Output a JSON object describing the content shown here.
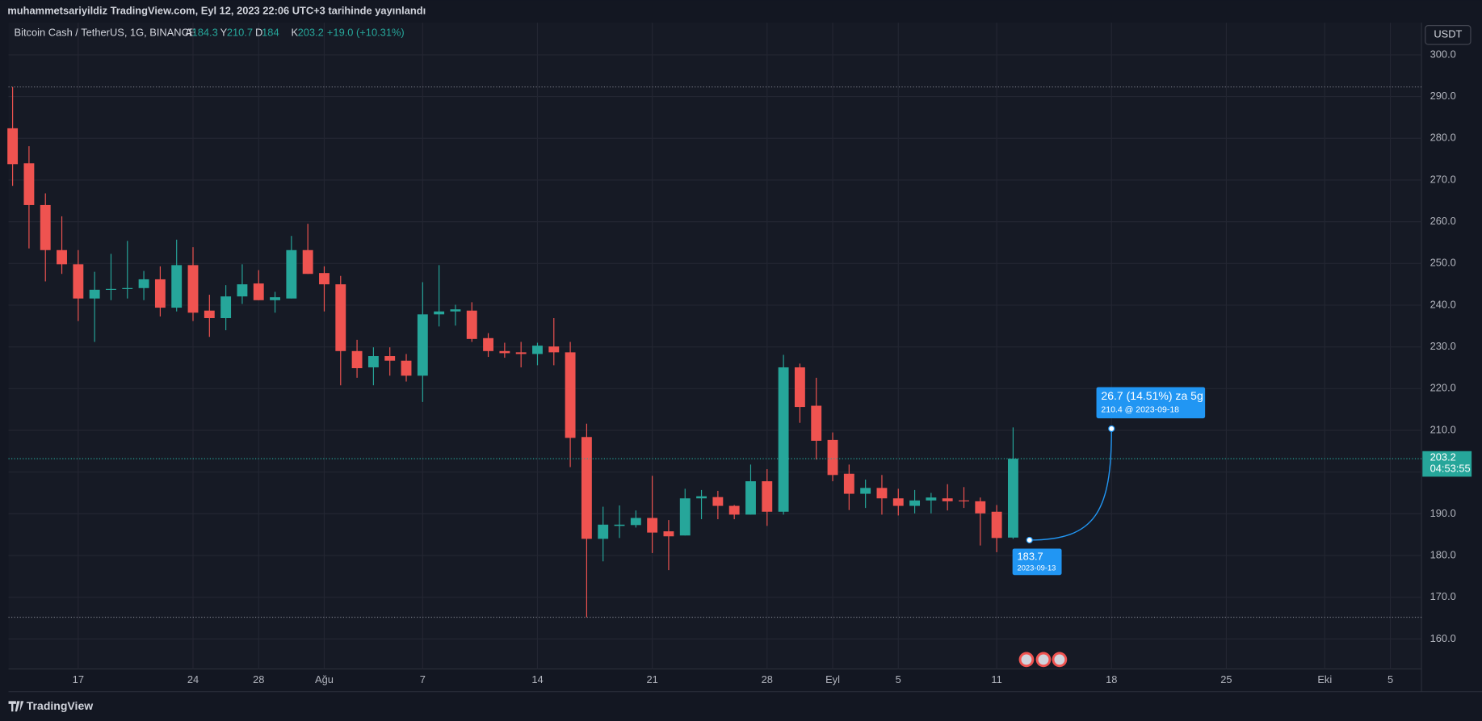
{
  "header": {
    "published": "muhammetsariyildiz TradingView.com, Eyl 12, 2023 22:06 UTC+3 tarihinde yayınlandı"
  },
  "footer": {
    "brand": "TradingView"
  },
  "chart_data": {
    "type": "candlestick",
    "symbol": "Bitcoin Cash / TetherUS, 1G, BINANCE",
    "ohlc_letters": [
      "A",
      "Y",
      "D",
      "K"
    ],
    "change_label": "+19.0 (+10.31%)",
    "currency": "USDT",
    "countdown": "04:53:55",
    "up_color": "#26a69a",
    "down_color": "#ef5350",
    "x": [
      0,
      1,
      2,
      3,
      4,
      5,
      6,
      7,
      8,
      9,
      10,
      11,
      12,
      13,
      14,
      15,
      16,
      17,
      18,
      19,
      20,
      21,
      22,
      23,
      24,
      25,
      26,
      27,
      28,
      29,
      30,
      31,
      32,
      33,
      34,
      35,
      36,
      37,
      38,
      39,
      40,
      41,
      42,
      43,
      44,
      45,
      46,
      47,
      48,
      49,
      50,
      51,
      52,
      53,
      54,
      55,
      56,
      57,
      58,
      59,
      60,
      61
    ],
    "open": [
      282.4,
      274.0,
      264.0,
      253.2,
      249.8,
      241.6,
      243.7,
      243.9,
      244.1,
      246.2,
      239.4,
      249.6,
      238.7,
      236.9,
      242.1,
      245.2,
      241.2,
      241.6,
      253.2,
      247.7,
      245.0,
      229.0,
      225.1,
      227.8,
      226.7,
      223.1,
      237.8,
      238.5,
      238.7,
      232.1,
      229.0,
      228.7,
      228.3,
      230.1,
      228.7,
      208.4,
      184.0,
      187.1,
      187.3,
      189.0,
      185.8,
      184.8,
      193.7,
      194.0,
      191.9,
      189.8,
      197.8,
      190.5,
      225.1,
      215.9,
      207.7,
      199.6,
      194.8,
      196.2,
      193.7,
      191.9,
      193.2,
      193.7,
      193.2,
      193.0,
      190.5,
      184.3
    ],
    "high": [
      292.3,
      278.1,
      266.8,
      261.3,
      253.2,
      248.0,
      252.3,
      255.4,
      248.2,
      249.3,
      255.7,
      253.9,
      242.5,
      244.8,
      249.8,
      248.4,
      243.2,
      256.6,
      259.5,
      249.3,
      247.0,
      231.7,
      229.9,
      229.9,
      228.3,
      245.5,
      249.6,
      240.1,
      240.7,
      233.3,
      231.0,
      231.2,
      231.0,
      236.9,
      231.2,
      211.6,
      191.7,
      192.0,
      190.8,
      199.1,
      188.5,
      196.0,
      195.7,
      195.5,
      192.1,
      201.8,
      200.7,
      228.1,
      226.0,
      222.6,
      209.5,
      201.8,
      198.2,
      199.3,
      196.0,
      195.7,
      195.0,
      197.1,
      196.4,
      193.9,
      192.1,
      210.7
    ],
    "low": [
      268.6,
      253.6,
      245.7,
      247.5,
      236.2,
      231.2,
      241.2,
      241.6,
      241.2,
      237.3,
      238.5,
      236.2,
      232.4,
      234.0,
      240.3,
      241.2,
      238.2,
      241.6,
      247.5,
      238.5,
      220.8,
      222.6,
      220.8,
      223.1,
      221.7,
      216.8,
      234.9,
      235.1,
      231.2,
      227.6,
      227.4,
      225.1,
      225.6,
      225.6,
      201.2,
      165.2,
      178.6,
      184.2,
      186.7,
      180.6,
      176.5,
      184.8,
      188.7,
      188.7,
      188.7,
      189.8,
      187.1,
      189.8,
      211.8,
      203.0,
      197.8,
      190.9,
      191.4,
      189.8,
      189.6,
      190.1,
      190.1,
      190.8,
      191.4,
      182.4,
      180.8,
      184.0
    ],
    "close": [
      273.8,
      264.0,
      253.2,
      249.8,
      241.6,
      243.7,
      243.9,
      244.1,
      246.2,
      239.4,
      249.6,
      238.2,
      236.9,
      242.1,
      245.0,
      241.2,
      241.9,
      253.2,
      247.5,
      245.0,
      229.0,
      224.9,
      227.8,
      226.7,
      223.1,
      237.8,
      238.5,
      239.0,
      231.9,
      229.0,
      228.5,
      228.3,
      230.3,
      228.7,
      208.2,
      184.0,
      187.4,
      187.4,
      189.0,
      185.5,
      184.6,
      193.7,
      194.2,
      191.9,
      189.8,
      197.8,
      190.5,
      225.1,
      215.6,
      207.5,
      199.3,
      194.8,
      196.2,
      193.7,
      191.9,
      193.2,
      193.9,
      193.0,
      193.0,
      190.1,
      184.2,
      203.2
    ],
    "xlim": [
      -0.25,
      85.9
    ],
    "xticks": [
      {
        "value": 4,
        "label": "17"
      },
      {
        "value": 11,
        "label": "24"
      },
      {
        "value": 15,
        "label": "28"
      },
      {
        "value": 19,
        "label": "Ağu"
      },
      {
        "value": 25,
        "label": "7"
      },
      {
        "value": 32,
        "label": "14"
      },
      {
        "value": 39,
        "label": "21"
      },
      {
        "value": 46,
        "label": "28"
      },
      {
        "value": 50,
        "label": "Eyl"
      },
      {
        "value": 54,
        "label": "5"
      },
      {
        "value": 60,
        "label": "11"
      },
      {
        "value": 67,
        "label": "18"
      },
      {
        "value": 74,
        "label": "25"
      },
      {
        "value": 80,
        "label": "Eki"
      },
      {
        "value": 84,
        "label": "5"
      }
    ],
    "ylim": [
      152.8,
      307.7
    ],
    "yticks": [
      {
        "value": 160,
        "label": "160.0"
      },
      {
        "value": 170,
        "label": "170.0"
      },
      {
        "value": 180,
        "label": "180.0"
      },
      {
        "value": 190,
        "label": "190.0"
      },
      {
        "value": 200,
        "label": "200.0"
      },
      {
        "value": 210,
        "label": "210.0"
      },
      {
        "value": 220,
        "label": "220.0"
      },
      {
        "value": 230,
        "label": "230.0"
      },
      {
        "value": 240,
        "label": "240.0"
      },
      {
        "value": 250,
        "label": "250.0"
      },
      {
        "value": 260,
        "label": "260.0"
      },
      {
        "value": 270,
        "label": "270.0"
      },
      {
        "value": 280,
        "label": "280.0"
      },
      {
        "value": 290,
        "label": "290.0"
      },
      {
        "value": 300,
        "label": "300.0"
      }
    ],
    "grid": true,
    "levels": [
      292.3,
      165.2
    ],
    "forecast": {
      "start": {
        "x": 62,
        "value": 183.7,
        "date": "2023-09-13"
      },
      "end": {
        "x": 67,
        "value": 210.4
      },
      "change_label": "26.7 (14.51%) za 5g",
      "end_label": "210.4 @ 2023-09-18",
      "color": "#2196f3"
    }
  }
}
